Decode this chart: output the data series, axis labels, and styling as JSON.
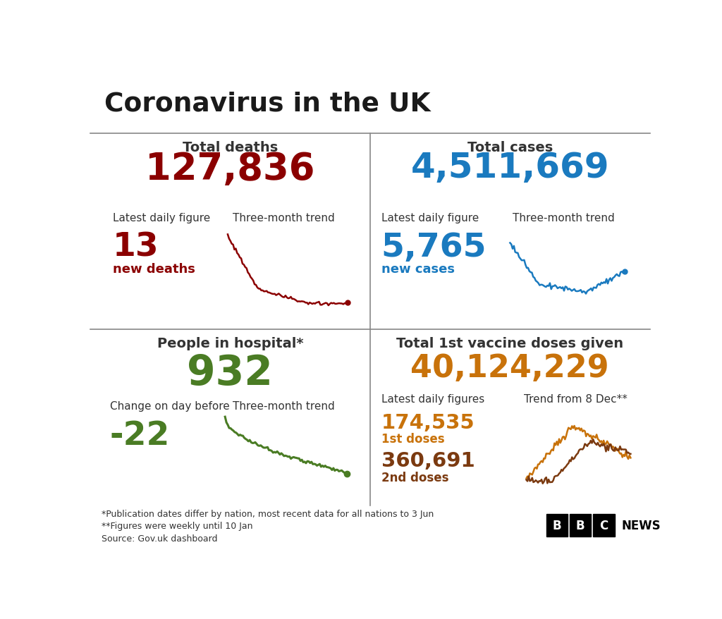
{
  "title": "Coronavirus in the UK",
  "title_color": "#1a1a1a",
  "bg_color": "#ffffff",
  "deaths_label": "Total deaths",
  "deaths_total": "127,836",
  "deaths_total_color": "#8b0000",
  "deaths_daily_label": "Latest daily figure",
  "deaths_trend_label": "Three-month trend",
  "deaths_daily_value": "13",
  "deaths_daily_color": "#8b0000",
  "deaths_daily_sublabel": "new deaths",
  "deaths_daily_sublabel_color": "#8b0000",
  "cases_label": "Total cases",
  "cases_total": "4,511,669",
  "cases_total_color": "#1a7abf",
  "cases_daily_label": "Latest daily figure",
  "cases_trend_label": "Three-month trend",
  "cases_daily_value": "5,765",
  "cases_daily_color": "#1a7abf",
  "cases_daily_sublabel": "new cases",
  "cases_daily_sublabel_color": "#1a7abf",
  "hospital_label": "People in hospital*",
  "hospital_total": "932",
  "hospital_total_color": "#4a7c24",
  "hospital_change_label": "Change on day before",
  "hospital_trend_label": "Three-month trend",
  "hospital_change_value": "-22",
  "hospital_change_color": "#4a7c24",
  "vaccine_label": "Total 1st vaccine doses given",
  "vaccine_total": "40,124,229",
  "vaccine_total_color": "#c8720a",
  "vaccine_daily_label": "Latest daily figures",
  "vaccine_trend_label": "Trend from 8 Dec**",
  "vaccine_dose1_value": "174,535",
  "vaccine_dose1_color": "#c8720a",
  "vaccine_dose1_sublabel": "1st doses",
  "vaccine_dose2_value": "360,691",
  "vaccine_dose2_color": "#7b3a10",
  "vaccine_dose2_sublabel": "2nd doses",
  "footnote1": "*Publication dates differ by nation, most recent data for all nations to 3 Jun",
  "footnote2": "**Figures were weekly until 10 Jan",
  "footnote3": "Source: Gov.uk dashboard",
  "label_color": "#333333",
  "divider_color": "#888888"
}
